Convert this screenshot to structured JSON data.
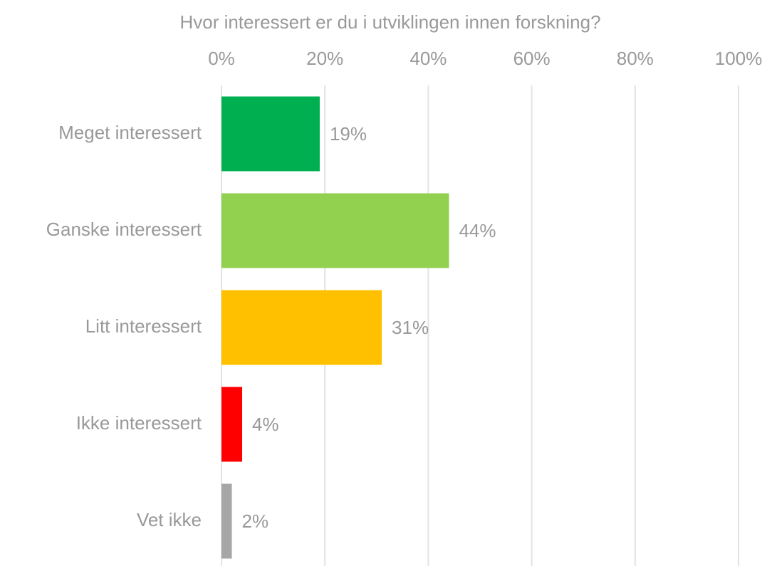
{
  "chart_data": {
    "type": "hbar",
    "title": "Hvor interessert er du i utviklingen innen forskning?",
    "categories": [
      "Meget interessert",
      "Ganske interessert",
      "Litt interessert",
      "Ikke interessert",
      "Vet ikke"
    ],
    "values": [
      19,
      44,
      31,
      4,
      2
    ],
    "value_labels": [
      "19%",
      "44%",
      "31%",
      "4%",
      "2%"
    ],
    "colors": [
      "#00b050",
      "#92d050",
      "#ffc000",
      "#ff0000",
      "#a6a6a6"
    ],
    "xlim": [
      0,
      100
    ],
    "xticks": [
      {
        "value": 0,
        "label": "0%"
      },
      {
        "value": 20,
        "label": "20%"
      },
      {
        "value": 40,
        "label": "40%"
      },
      {
        "value": 60,
        "label": "60%"
      },
      {
        "value": 80,
        "label": "80%"
      },
      {
        "value": 100,
        "label": "100%"
      }
    ],
    "grid": true
  }
}
